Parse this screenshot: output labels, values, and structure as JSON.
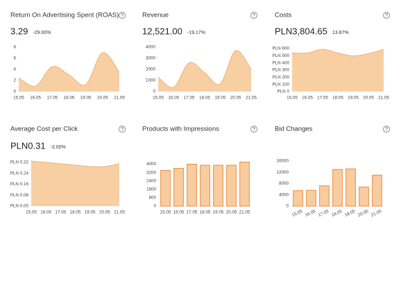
{
  "chart_data": [
    {
      "type": "area",
      "title": "Return On Advertising Spent (ROAS)",
      "metric": "3.29",
      "change": "-29.00%",
      "categories": [
        "15.05",
        "16.05",
        "17.05",
        "18.05",
        "19.05",
        "20.05",
        "21.05"
      ],
      "values": [
        2.5,
        1.0,
        4.5,
        3.0,
        1.3,
        7.0,
        3.5
      ],
      "ylim": [
        0,
        8
      ],
      "yticks": [
        0,
        2,
        4,
        6,
        8
      ],
      "color": "#e8974a"
    },
    {
      "type": "area",
      "title": "Revenue",
      "metric": "12,521.00",
      "change": "-19.17%",
      "categories": [
        "15.05",
        "16.05",
        "17.05",
        "18.05",
        "19.05",
        "20.05",
        "21.05"
      ],
      "values": [
        1300,
        400,
        2600,
        1700,
        700,
        3700,
        2000
      ],
      "ylim": [
        0,
        4000
      ],
      "yticks": [
        0,
        1000,
        2000,
        3000,
        4000
      ],
      "color": "#e8974a"
    },
    {
      "type": "area",
      "title": "Costs",
      "metric": "PLN3,804.65",
      "change": "13.87%",
      "categories": [
        "15.05",
        "16.05",
        "17.05",
        "18.05",
        "19.05",
        "20.05",
        "21.05"
      ],
      "values": [
        540,
        540,
        590,
        540,
        500,
        530,
        590
      ],
      "ylim": [
        0,
        620
      ],
      "yticks": [
        {
          "value": 0,
          "label": "PLN 0"
        },
        {
          "value": 100,
          "label": "PLN 100"
        },
        {
          "value": 200,
          "label": "PLN 200"
        },
        {
          "value": 300,
          "label": "PLN 300"
        },
        {
          "value": 400,
          "label": "PLN 400"
        },
        {
          "value": 500,
          "label": "PLN 500"
        },
        {
          "value": 600,
          "label": "PLN 600"
        }
      ],
      "color": "#e8974a"
    },
    {
      "type": "area",
      "title": "Average Cost per Click",
      "metric": "PLN0.31",
      "change": "-3.00%",
      "categories": [
        "15.05",
        "16.05",
        "17.05",
        "18.05",
        "19.05",
        "20.05",
        "21.05"
      ],
      "values": [
        0.33,
        0.32,
        0.31,
        0.3,
        0.29,
        0.29,
        0.31
      ],
      "ylim": [
        0,
        0.33
      ],
      "yticks": [
        {
          "value": 0,
          "label": "PLN 0.00"
        },
        {
          "value": 0.08,
          "label": "PLN 0.08"
        },
        {
          "value": 0.16,
          "label": "PLN 0.16"
        },
        {
          "value": 0.24,
          "label": "PLN 0.24"
        },
        {
          "value": 0.32,
          "label": "PLN 0.32"
        }
      ],
      "color": "#e8974a"
    },
    {
      "type": "bar",
      "title": "Products with Impressions",
      "categories": [
        "15.05",
        "16.05",
        "17.05",
        "18.05",
        "19.05",
        "20.05",
        "21.05"
      ],
      "values": [
        3400,
        3600,
        4000,
        3900,
        3900,
        3900,
        4200
      ],
      "ylim": [
        0,
        4300
      ],
      "yticks": [
        0,
        800,
        1600,
        2400,
        3200,
        4000
      ],
      "color": "#e88b3c"
    },
    {
      "type": "bar",
      "title": "Bid Changes",
      "categories": [
        "15.05",
        "16.05",
        "17.05",
        "18.05",
        "19.05",
        "20.05",
        "21.05"
      ],
      "values": [
        5500,
        5600,
        7200,
        13000,
        13200,
        6800,
        11000
      ],
      "ylim": [
        0,
        16000
      ],
      "yticks": [
        0,
        4000,
        8000,
        12000,
        16000
      ],
      "color": "#e88b3c",
      "rotate_labels": true
    }
  ]
}
